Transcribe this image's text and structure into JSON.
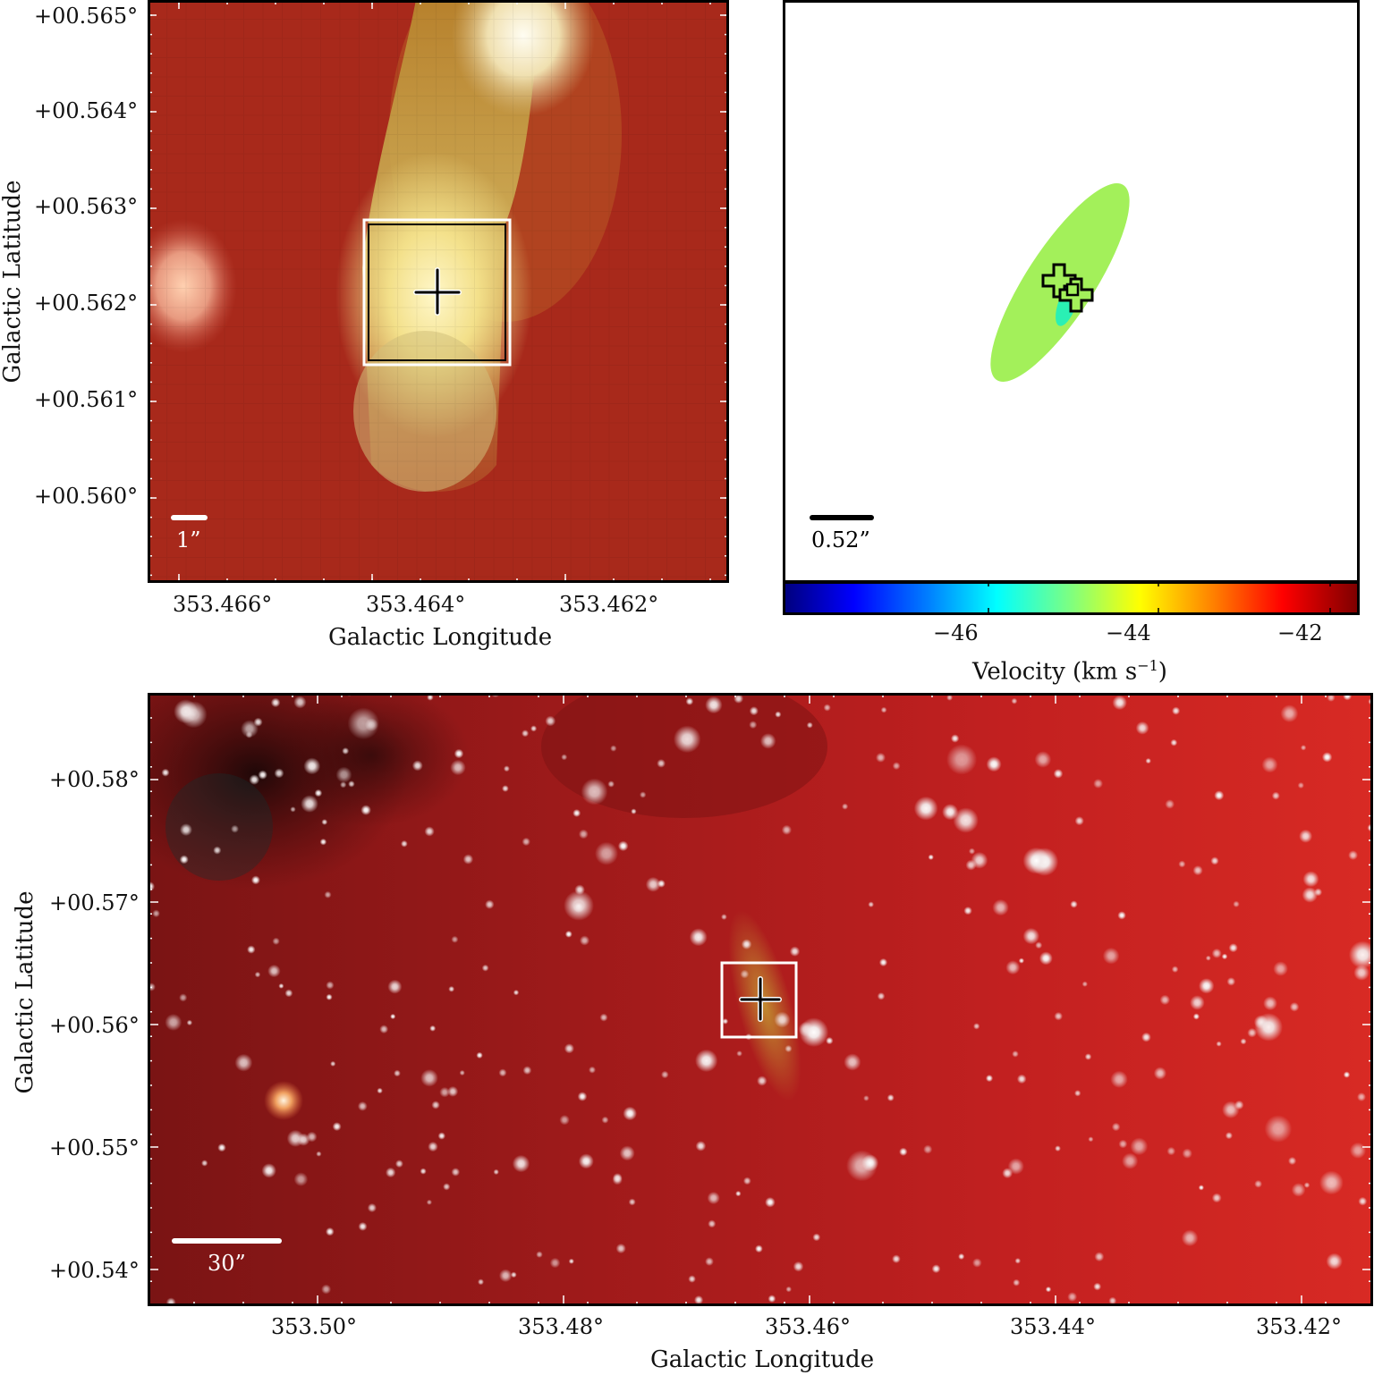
{
  "panel_a": {
    "y_ticks": [
      "+00.565°",
      "+00.564°",
      "+00.563°",
      "+00.562°",
      "+00.561°",
      "+00.560°"
    ],
    "x_ticks": [
      "353.466°",
      "353.464°",
      "353.462°"
    ],
    "xlabel": "Galactic Longitude",
    "ylabel": "Galactic Latitude",
    "scalebar": "1”"
  },
  "panel_b": {
    "scalebar": "0.52”",
    "colorbar_ticks": [
      "−46",
      "−44",
      "−42"
    ],
    "colorbar_label": "Velocity (km s",
    "colorbar_label_sup": "−1",
    "colorbar_label_end": ")",
    "ellipse_color": "#a3f05a",
    "marker_color": "#2af0b4"
  },
  "panel_c": {
    "y_ticks": [
      "+00.58°",
      "+00.57°",
      "+00.56°",
      "+00.55°",
      "+00.54°"
    ],
    "x_ticks": [
      "353.50°",
      "353.48°",
      "353.46°",
      "353.44°",
      "353.42°"
    ],
    "xlabel": "Galactic Longitude",
    "ylabel": "Galactic Latitude",
    "scalebar": "30”"
  }
}
